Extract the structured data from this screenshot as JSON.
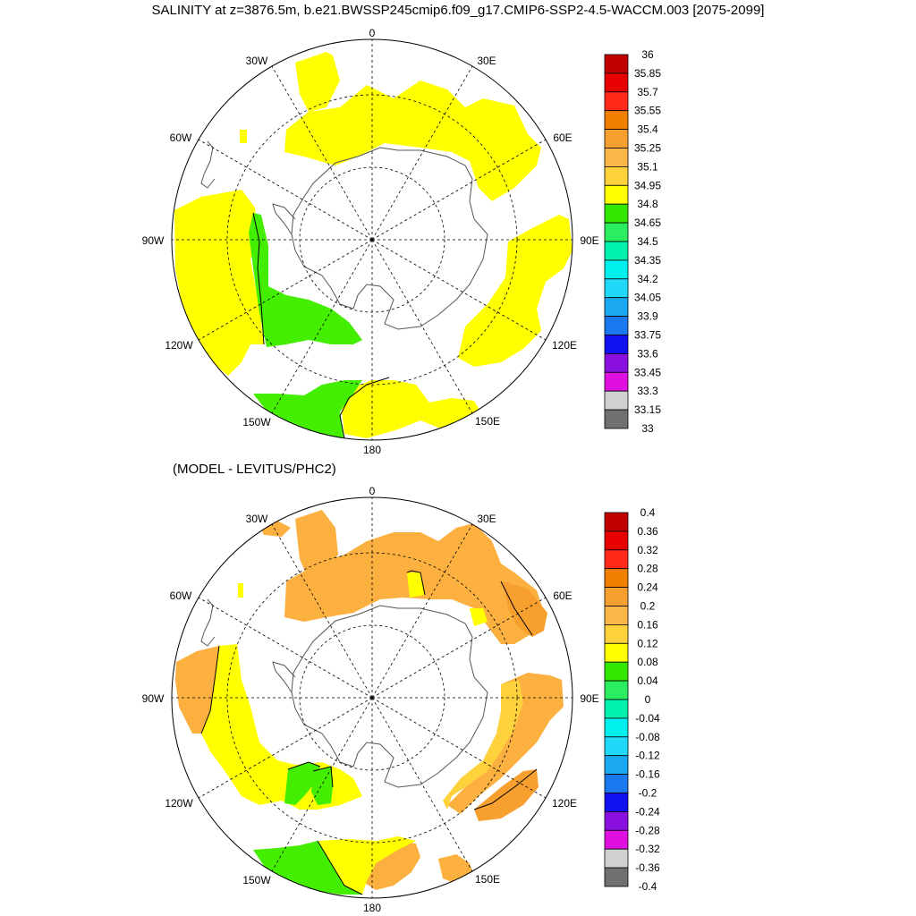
{
  "title": "SALINITY at z=3876.5m, b.e21.BWSSP245cmip6.f09_g17.CMIP6-SSP2-4.5-WACCM.003 [2075-2099]",
  "subtitle": "(MODEL - LEVITUS/PHC2)",
  "map_labels": {
    "lon_0": "0",
    "lon_30e": "30E",
    "lon_60e": "60E",
    "lon_90e": "90E",
    "lon_120e": "120E",
    "lon_150e": "150E",
    "lon_180": "180",
    "lon_150w": "150W",
    "lon_120w": "120W",
    "lon_90w": "90W",
    "lon_60w": "60W",
    "lon_30w": "30W"
  },
  "colorbar_top": {
    "labels": [
      "36",
      "35.85",
      "35.7",
      "35.55",
      "35.4",
      "35.25",
      "35.1",
      "34.95",
      "34.8",
      "34.65",
      "34.5",
      "34.35",
      "34.2",
      "34.05",
      "33.9",
      "33.75",
      "33.6",
      "33.45",
      "33.3",
      "33.15",
      "33"
    ],
    "colors": [
      "#c00000",
      "#e60000",
      "#ff2a1a",
      "#f08000",
      "#f7a030",
      "#fbb848",
      "#ffd23c",
      "#ffff00",
      "#32e800",
      "#2aee60",
      "#00f0b0",
      "#00f0ee",
      "#20d8f8",
      "#1aa8f0",
      "#1a78f0",
      "#1010f0",
      "#8a10e0",
      "#e010e0",
      "#d0d0d0",
      "#707070"
    ]
  },
  "colorbar_bottom": {
    "labels": [
      "0.4",
      "0.36",
      "0.32",
      "0.28",
      "0.24",
      "0.2",
      "0.16",
      "0.12",
      "0.08",
      "0.04",
      "0",
      "-0.04",
      "-0.08",
      "-0.12",
      "-0.16",
      "-0.2",
      "-0.24",
      "-0.28",
      "-0.32",
      "-0.36",
      "-0.4"
    ],
    "colors": [
      "#c00000",
      "#e60000",
      "#ff2a1a",
      "#f08000",
      "#f7a030",
      "#fbb848",
      "#ffd23c",
      "#ffff00",
      "#32e800",
      "#2aee60",
      "#00f0b0",
      "#00f0ee",
      "#20d8f8",
      "#1aa8f0",
      "#1a78f0",
      "#1010f0",
      "#8a10e0",
      "#e010e0",
      "#d0d0d0",
      "#707070"
    ]
  },
  "colors": {
    "land": "#ffffff",
    "yellow": "#ffff00",
    "green": "#44ee00",
    "orange": "#fbb040",
    "dark_orange": "#f7a030",
    "light_orange": "#ffd23c"
  }
}
